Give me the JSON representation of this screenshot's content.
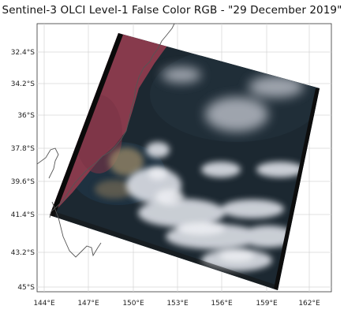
{
  "title": "Sentinel-3 OLCI Level-1 False Color RGB - \"29 December 2019\"",
  "latitude_labels": [
    "32.4°S",
    "34.2°S",
    "36°S",
    "37.8°S",
    "39.6°S",
    "41.4°S",
    "43.2°S",
    "45°S"
  ],
  "longitude_labels": [
    "144°E",
    "147°E",
    "150°E",
    "153°E",
    "156°E",
    "159°E",
    "162°E"
  ],
  "colors": {
    "land_falsecolor": "#8a3a4a",
    "ocean": "#1e2a33",
    "cloud": "#d8dbe2",
    "coastline": "#555555",
    "gridline": "#d6d6d6"
  }
}
